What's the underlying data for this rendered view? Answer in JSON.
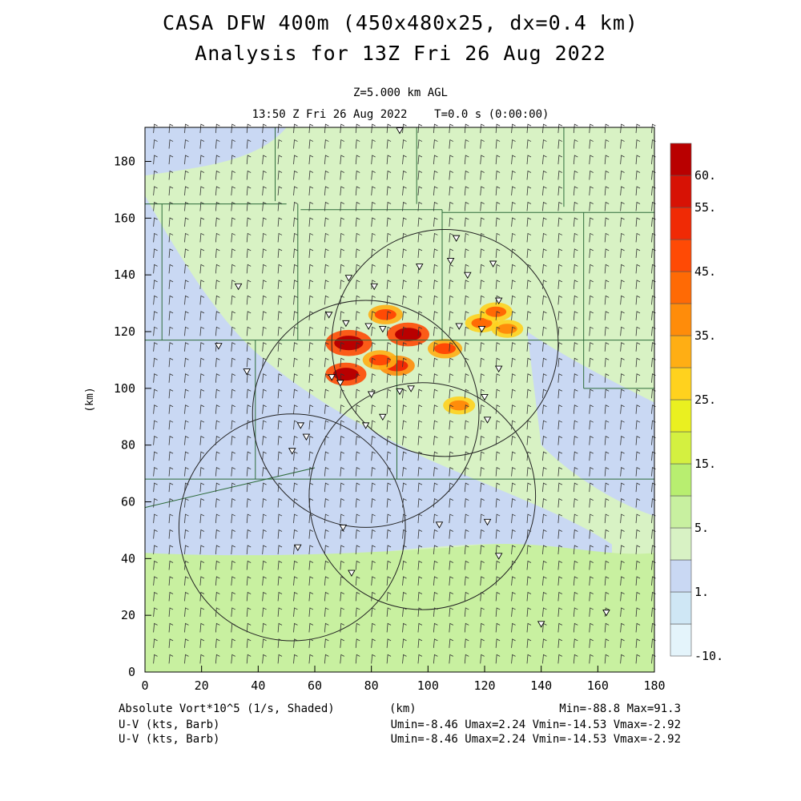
{
  "header": {
    "title_line1": "CASA DFW 400m (450x480x25, dx=0.4 km)",
    "title_line2": "Analysis for 13Z Fri 26 Aug 2022",
    "level": "Z=5.000 km AGL",
    "time": "13:50 Z Fri 26 Aug 2022    T=0.0 s (0:00:00)"
  },
  "footer": {
    "field_label": "Absolute Vort*10^5 (1/s, Shaded)",
    "x_unit": "(km)",
    "minmax": "Min=-88.8 Max=91.3",
    "wind1_label": "U-V (kts, Barb)",
    "wind1_stats": "Umin=-8.46 Umax=2.24 Vmin=-14.53 Vmax=-2.92",
    "wind2_label": "U-V (kts, Barb)",
    "wind2_stats": "Umin=-8.46 Umax=2.24 Vmin=-14.53 Vmax=-2.92"
  },
  "chart_data": {
    "type": "heatmap",
    "xlabel": "",
    "ylabel": "(km)",
    "xlim": [
      0,
      180
    ],
    "ylim": [
      0,
      192
    ],
    "xticks": [
      0,
      20,
      40,
      60,
      80,
      100,
      120,
      140,
      160,
      180
    ],
    "yticks": [
      0,
      20,
      40,
      60,
      80,
      100,
      120,
      140,
      160,
      180
    ],
    "colorbar": {
      "labels": [
        "60.",
        "55.",
        "45.",
        "35.",
        "25.",
        "15.",
        "5.",
        "1.",
        "-10."
      ],
      "label_positions": [
        15,
        14,
        12,
        10,
        8,
        6,
        4,
        2,
        0
      ],
      "colors": [
        "#e4f4fb",
        "#cfe7f5",
        "#c9d8f3",
        "#d8f2c4",
        "#c8f0a0",
        "#b8ee70",
        "#d4f040",
        "#eaf020",
        "#ffd21e",
        "#ffae14",
        "#ff8c0a",
        "#ff6a05",
        "#ff4a05",
        "#f02a05",
        "#d71205",
        "#b90000"
      ]
    },
    "background_vorticity_levels": {
      "north_and_east": "5 to 15",
      "central_west": "1 to 5",
      "south_band": "15 to 25"
    },
    "vorticity_cores": [
      {
        "x": 72,
        "y": 116,
        "value": 91.3
      },
      {
        "x": 93,
        "y": 119,
        "value": 75
      },
      {
        "x": 71,
        "y": 105,
        "value": 70
      },
      {
        "x": 85,
        "y": 126,
        "value": 45
      },
      {
        "x": 106,
        "y": 114,
        "value": 45
      },
      {
        "x": 119,
        "y": 123,
        "value": 40
      },
      {
        "x": 124,
        "y": 127,
        "value": 40
      },
      {
        "x": 111,
        "y": 94,
        "value": 35
      },
      {
        "x": 89,
        "y": 108,
        "value": 50
      },
      {
        "x": 83,
        "y": 110,
        "value": 45
      },
      {
        "x": 128,
        "y": 121,
        "value": 35
      }
    ],
    "radar_circles": [
      {
        "cx": 106,
        "cy": 116,
        "r_km": 40
      },
      {
        "cx": 78,
        "cy": 91,
        "r_km": 40
      },
      {
        "cx": 52,
        "cy": 51,
        "r_km": 40
      },
      {
        "cx": 98,
        "cy": 62,
        "r_km": 40
      }
    ],
    "stations": [
      [
        90,
        191
      ],
      [
        110,
        153
      ],
      [
        33,
        136
      ],
      [
        72,
        139
      ],
      [
        81,
        136
      ],
      [
        97,
        143
      ],
      [
        108,
        145
      ],
      [
        114,
        140
      ],
      [
        123,
        144
      ],
      [
        65,
        126
      ],
      [
        71,
        123
      ],
      [
        79,
        122
      ],
      [
        84,
        121
      ],
      [
        111,
        122
      ],
      [
        119,
        121
      ],
      [
        125,
        131
      ],
      [
        26,
        115
      ],
      [
        36,
        106
      ],
      [
        66,
        104
      ],
      [
        69,
        102
      ],
      [
        80,
        98
      ],
      [
        90,
        99
      ],
      [
        94,
        100
      ],
      [
        120,
        97
      ],
      [
        121,
        89
      ],
      [
        125,
        107
      ],
      [
        78,
        87
      ],
      [
        84,
        90
      ],
      [
        55,
        87
      ],
      [
        57,
        83
      ],
      [
        52,
        78
      ],
      [
        70,
        51
      ],
      [
        54,
        44
      ],
      [
        73,
        35
      ],
      [
        104,
        52
      ],
      [
        121,
        53
      ],
      [
        125,
        41
      ],
      [
        140,
        17
      ],
      [
        163,
        21
      ]
    ],
    "wind_field": {
      "u_range": [
        -8.46,
        2.24
      ],
      "v_range": [
        -14.53,
        -2.92
      ]
    }
  }
}
